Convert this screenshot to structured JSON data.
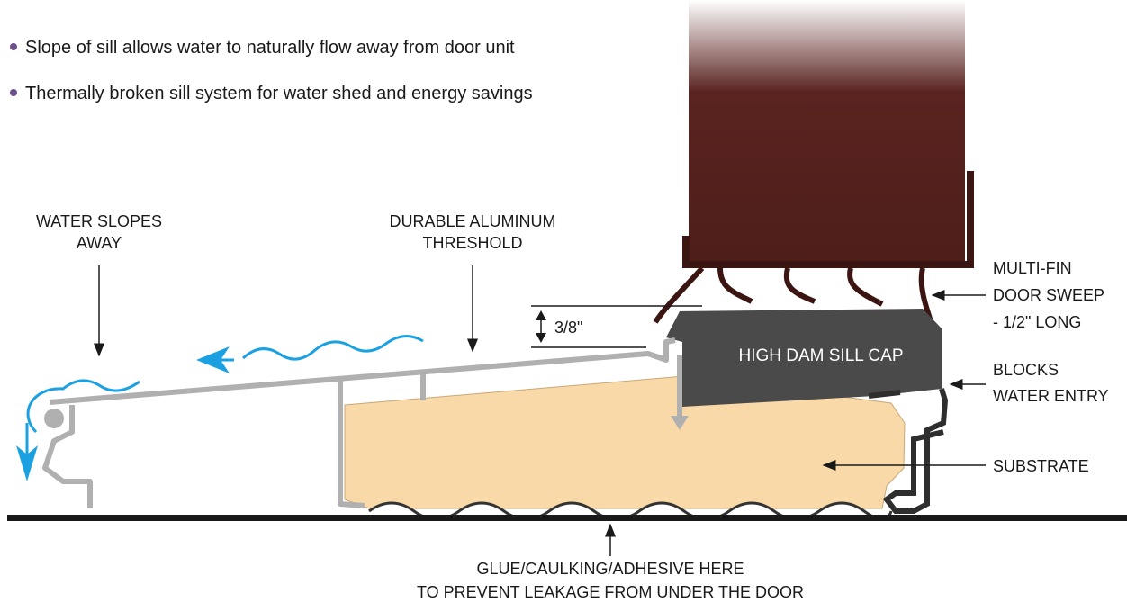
{
  "bullets": [
    "Slope of sill allows water to naturally flow away from door unit",
    "Thermally broken sill system for water shed and energy savings"
  ],
  "callouts": {
    "water": [
      "WATER SLOPES",
      "AWAY"
    ],
    "threshold": [
      "DURABLE ALUMINUM",
      "THRESHOLD"
    ],
    "sweep": [
      "MULTI-FIN",
      "DOOR SWEEP",
      "- 1/2\" LONG"
    ],
    "blocks": [
      "BLOCKS",
      "WATER ENTRY"
    ],
    "substrate": "SUBSTRATE",
    "glue": [
      "GLUE/CAULKING/ADHESIVE HERE",
      "TO PREVENT LEAKAGE FROM UNDER THE DOOR"
    ]
  },
  "dimension": "3/8\"",
  "sill_cap": "HIGH DAM SILL CAP"
}
